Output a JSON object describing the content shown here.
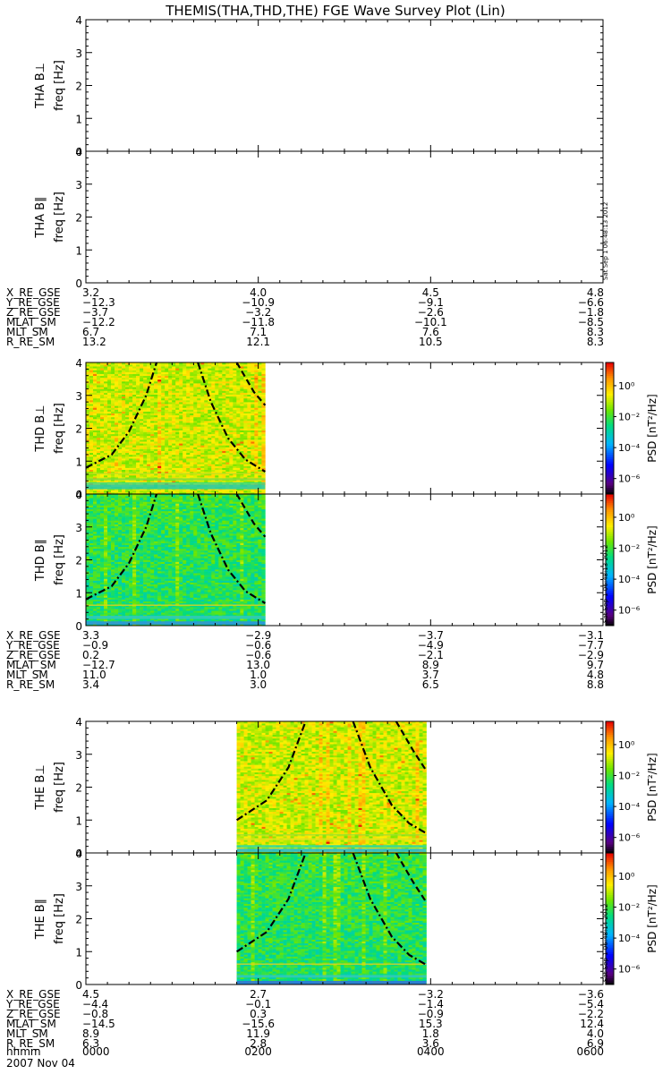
{
  "chart_data": {
    "type": "heatmap",
    "title": "THEMIS(THA,THD,THE) FGE Wave Survey Plot (Lin)",
    "freq_range": [
      0,
      4
    ],
    "freq_ticks": [
      "0",
      "1",
      "2",
      "3",
      "4"
    ],
    "colorbar": {
      "label": "PSD [nT²/Hz]",
      "tick_labels": [
        "10⁰",
        "10⁻²",
        "10⁻⁴",
        "10⁻⁶"
      ],
      "log_range": [
        -7,
        1.5
      ],
      "tick_exponents": [
        0,
        -2,
        -4,
        -6
      ]
    },
    "time_axis": {
      "start_label": "hhmm",
      "date": "2007 Nov 04",
      "ticks": [
        "0000",
        "0200",
        "0400",
        "0600"
      ],
      "hour_range": [
        0,
        6
      ]
    },
    "probes": [
      {
        "name": "THA",
        "panels": [
          {
            "label": "THA B⊥",
            "ylabel": "freq [Hz]",
            "data_start_hr": null,
            "data_end_hr": null,
            "has_colorbar": false
          },
          {
            "label": "THA B∥",
            "ylabel": "freq [Hz]",
            "data_start_hr": null,
            "data_end_hr": null,
            "has_colorbar": false
          }
        ],
        "timestamp": "Sat Sep  1 06:48:13 2012",
        "ephemeris": [
          {
            "name": "X_RE_GSE",
            "values": [
              "3.2",
              "4.0",
              "4.5",
              "4.8"
            ]
          },
          {
            "name": "Y_RE_GSE",
            "values": [
              "−12.3",
              "−10.9",
              "−9.1",
              "−6.6"
            ]
          },
          {
            "name": "Z_RE_GSE",
            "values": [
              "−3.7",
              "−3.2",
              "−2.6",
              "−1.8"
            ]
          },
          {
            "name": "MLAT_SM",
            "values": [
              "−12.2",
              "−11.8",
              "−10.1",
              "−8.5"
            ]
          },
          {
            "name": "MLT_SM",
            "values": [
              "6.7",
              "7.1",
              "7.6",
              "8.3"
            ]
          },
          {
            "name": "R_RE_SM",
            "values": [
              "13.2",
              "12.1",
              "10.5",
              "8.3"
            ]
          }
        ]
      },
      {
        "name": "THD",
        "panels": [
          {
            "label": "THD B⊥",
            "ylabel": "freq [Hz]",
            "data_start_hr": 0,
            "data_end_hr": 2.08,
            "has_colorbar": true
          },
          {
            "label": "THD B∥",
            "ylabel": "freq [Hz]",
            "data_start_hr": 0,
            "data_end_hr": 2.08,
            "has_colorbar": true
          }
        ],
        "gyro_curves": [
          {
            "style": "dashdot",
            "points": [
              [
                0,
                0.8
              ],
              [
                0.3,
                1.2
              ],
              [
                0.5,
                1.9
              ],
              [
                0.7,
                3.0
              ],
              [
                0.82,
                4.0
              ]
            ]
          },
          {
            "style": "dashdot",
            "points": [
              [
                1.3,
                4.0
              ],
              [
                1.45,
                2.8
              ],
              [
                1.65,
                1.7
              ],
              [
                1.85,
                1.05
              ],
              [
                2.08,
                0.68
              ]
            ]
          },
          {
            "style": "dashed",
            "points": [
              [
                1.75,
                4.0
              ],
              [
                1.95,
                3.1
              ],
              [
                2.08,
                2.7
              ]
            ]
          }
        ],
        "bands_perp": [
          [
            0.22,
            0.15,
            "#20c8b0"
          ],
          [
            0.45,
            0.06,
            "#80dc40"
          ],
          [
            0.62,
            0.04,
            "#c0e020"
          ],
          [
            0.33,
            0.05,
            "#30d890"
          ]
        ],
        "bands_par": [
          [
            0.08,
            0.1,
            "#3090e0"
          ],
          [
            0.25,
            0.1,
            "#30c8c0"
          ],
          [
            0.62,
            0.04,
            "#e0d020"
          ]
        ],
        "timestamp": "Sat Sep  1 06:48:13 2012",
        "ephemeris": [
          {
            "name": "X_RE_GSE",
            "values": [
              "3.3",
              "−2.9",
              "−3.7",
              "−3.1"
            ]
          },
          {
            "name": "Y_RE_GSE",
            "values": [
              "−0.9",
              "−0.6",
              "−4.9",
              "−7.7"
            ]
          },
          {
            "name": "Z_RE_GSE",
            "values": [
              "0.2",
              "−0.6",
              "−2.1",
              "−2.9"
            ]
          },
          {
            "name": "MLAT_SM",
            "values": [
              "−12.7",
              "13.0",
              "8.9",
              "9.7"
            ]
          },
          {
            "name": "MLT_SM",
            "values": [
              "11.0",
              "1.0",
              "3.7",
              "4.8"
            ]
          },
          {
            "name": "R_RE_SM",
            "values": [
              "3.4",
              "3.0",
              "6.5",
              "8.8"
            ]
          }
        ]
      },
      {
        "name": "THE",
        "panels": [
          {
            "label": "THE B⊥",
            "ylabel": "freq [Hz]",
            "data_start_hr": 1.75,
            "data_end_hr": 3.95,
            "has_colorbar": true
          },
          {
            "label": "THE B∥",
            "ylabel": "freq [Hz]",
            "data_start_hr": 1.75,
            "data_end_hr": 3.95,
            "has_colorbar": true
          }
        ],
        "gyro_curves": [
          {
            "style": "dashdot",
            "points": [
              [
                1.75,
                1.0
              ],
              [
                2.1,
                1.6
              ],
              [
                2.35,
                2.6
              ],
              [
                2.55,
                4.0
              ]
            ]
          },
          {
            "style": "dashdot",
            "points": [
              [
                3.1,
                4.0
              ],
              [
                3.3,
                2.6
              ],
              [
                3.55,
                1.45
              ],
              [
                3.75,
                0.9
              ],
              [
                3.95,
                0.6
              ]
            ]
          },
          {
            "style": "dashed",
            "points": [
              [
                3.6,
                4.0
              ],
              [
                3.8,
                3.1
              ],
              [
                3.95,
                2.5
              ]
            ]
          }
        ],
        "bands_perp": [
          [
            0.08,
            0.1,
            "#20b8e0"
          ],
          [
            0.2,
            0.08,
            "#30d8a0"
          ],
          [
            0.42,
            0.06,
            "#e0e020"
          ],
          [
            0.55,
            0.04,
            "#a0e030"
          ]
        ],
        "bands_par": [
          [
            0.06,
            0.1,
            "#3070e0"
          ],
          [
            0.25,
            0.08,
            "#30c8c0"
          ],
          [
            0.62,
            0.04,
            "#e0d020"
          ]
        ],
        "timestamp": "Sat Sep  1 06:48:14 2012",
        "ephemeris": [
          {
            "name": "X_RE_GSE",
            "values": [
              "4.5",
              "2.7",
              "−3.2",
              "−3.6"
            ]
          },
          {
            "name": "Y_RE_GSE",
            "values": [
              "−4.4",
              "−0.1",
              "−1.4",
              "−5.4"
            ]
          },
          {
            "name": "Z_RE_GSE",
            "values": [
              "−0.8",
              "0.3",
              "−0.9",
              "−2.2"
            ]
          },
          {
            "name": "MLAT_SM",
            "values": [
              "−14.5",
              "−15.6",
              "15.3",
              "12.4"
            ]
          },
          {
            "name": "MLT_SM",
            "values": [
              "8.9",
              "11.9",
              "1.8",
              "4.0"
            ]
          },
          {
            "name": "R_RE_SM",
            "values": [
              "6.3",
              "2.8",
              "3.6",
              "6.9"
            ]
          }
        ]
      }
    ]
  }
}
